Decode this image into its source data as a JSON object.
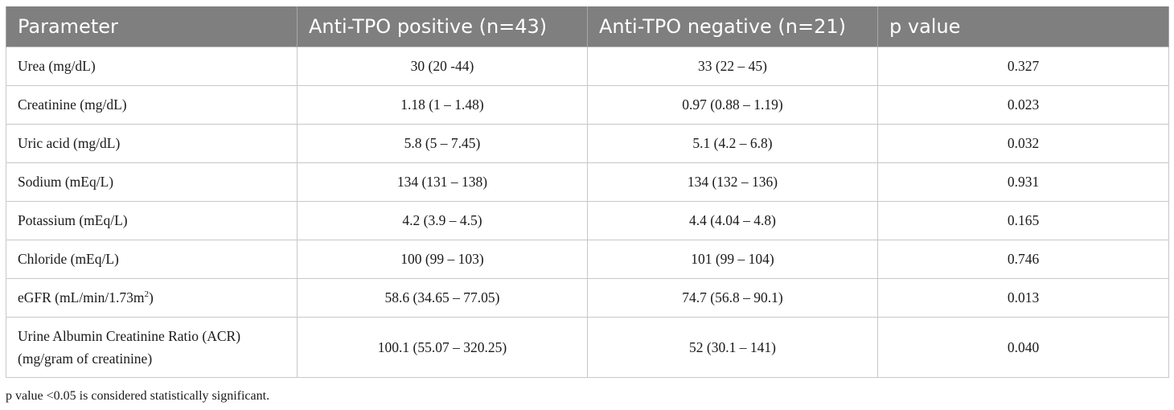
{
  "table": {
    "headers": [
      "Parameter",
      "Anti-TPO positive (n=43)",
      "Anti-TPO negative (n=21)",
      "p value"
    ],
    "rows": [
      {
        "parameter": "Urea (mg/dL)",
        "positive": "30 (20 -44)",
        "negative": "33 (22 – 45)",
        "p": "0.327"
      },
      {
        "parameter": "Creatinine (mg/dL)",
        "positive": "1.18 (1 – 1.48)",
        "negative": "0.97 (0.88 – 1.19)",
        "p": "0.023"
      },
      {
        "parameter": "Uric acid (mg/dL)",
        "positive": "5.8 (5 – 7.45)",
        "negative": "5.1 (4.2 – 6.8)",
        "p": "0.032"
      },
      {
        "parameter": "Sodium (mEq/L)",
        "positive": "134 (131 – 138)",
        "negative": "134 (132 – 136)",
        "p": "0.931"
      },
      {
        "parameter": "Potassium (mEq/L)",
        "positive": "4.2 (3.9 – 4.5)",
        "negative": "4.4 (4.04 – 4.8)",
        "p": "0.165"
      },
      {
        "parameter": "Chloride (mEq/L)",
        "positive": "100 (99 – 103)",
        "negative": "101 (99 – 104)",
        "p": "0.746"
      },
      {
        "parameter_prefix": "eGFR (mL/min/1.73m",
        "parameter_sup": "2",
        "parameter_suffix": ")",
        "positive": "58.6 (34.65 – 77.05)",
        "negative": "74.7 (56.8 – 90.1)",
        "p": "0.013"
      },
      {
        "parameter_line1": "Urine Albumin Creatinine Ratio (ACR)",
        "parameter_line2": "(mg/gram of creatinine)",
        "positive": "100.1 (55.07 – 320.25)",
        "negative": "52 (30.1 – 141)",
        "p": "0.040"
      }
    ]
  },
  "footnote": "p value <0.05 is considered statistically significant."
}
